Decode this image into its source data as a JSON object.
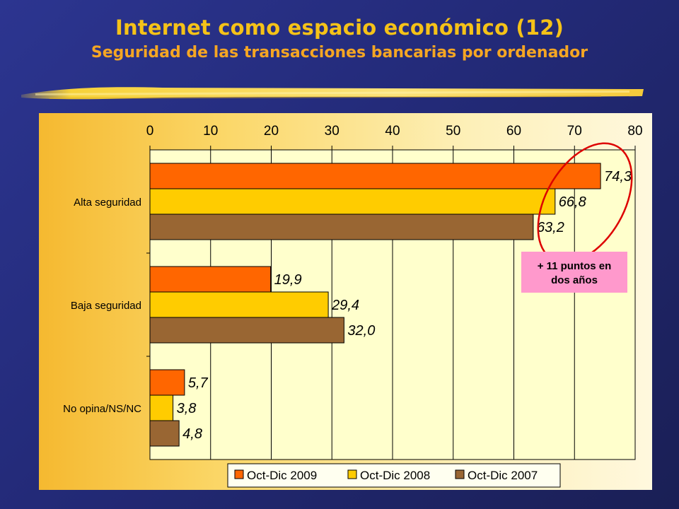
{
  "header": {
    "title": "Internet como espacio económico (12)",
    "subtitle": "Seguridad de las transacciones bancarias por ordenador"
  },
  "chart_data": {
    "type": "bar",
    "orientation": "horizontal",
    "categories": [
      "Alta seguridad",
      "Baja seguridad",
      "No opina/NS/NC"
    ],
    "series": [
      {
        "name": "Oct-Dic 2009",
        "values": [
          74.3,
          19.9,
          5.7
        ],
        "labels": [
          "74,3",
          "19,9",
          "5,7"
        ],
        "color": "#ff6600"
      },
      {
        "name": "Oct-Dic 2008",
        "values": [
          66.8,
          29.4,
          3.8
        ],
        "labels": [
          "66,8",
          "29,4",
          "3,8"
        ],
        "color": "#ffcc00"
      },
      {
        "name": "Oct-Dic 2007",
        "values": [
          63.2,
          32.0,
          4.8
        ],
        "labels": [
          "63,2",
          "32,0",
          "4,8"
        ],
        "color": "#996633"
      }
    ],
    "xlim": [
      0,
      80
    ],
    "xticks": [
      "0",
      "10",
      "20",
      "30",
      "40",
      "50",
      "60",
      "70",
      "80"
    ],
    "x_axis_position": "top",
    "grid": true,
    "legend": "bottom",
    "annotation": {
      "text_line1": "+ 11 puntos en",
      "text_line2": "dos años",
      "background": "#ff99cc",
      "highlight_color": "#dd0000"
    }
  }
}
